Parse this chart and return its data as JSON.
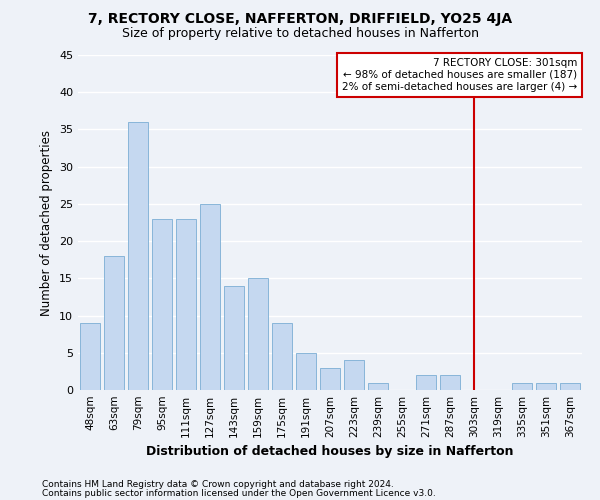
{
  "title": "7, RECTORY CLOSE, NAFFERTON, DRIFFIELD, YO25 4JA",
  "subtitle": "Size of property relative to detached houses in Nafferton",
  "xlabel": "Distribution of detached houses by size in Nafferton",
  "ylabel": "Number of detached properties",
  "bar_color": "#c5d8f0",
  "bar_edge_color": "#7baed4",
  "categories": [
    "48sqm",
    "63sqm",
    "79sqm",
    "95sqm",
    "111sqm",
    "127sqm",
    "143sqm",
    "159sqm",
    "175sqm",
    "191sqm",
    "207sqm",
    "223sqm",
    "239sqm",
    "255sqm",
    "271sqm",
    "287sqm",
    "303sqm",
    "319sqm",
    "335sqm",
    "351sqm",
    "367sqm"
  ],
  "values": [
    9,
    18,
    36,
    23,
    23,
    25,
    14,
    15,
    9,
    5,
    3,
    4,
    1,
    0,
    2,
    2,
    0,
    0,
    1,
    1,
    1
  ],
  "ylim": [
    0,
    45
  ],
  "yticks": [
    0,
    5,
    10,
    15,
    20,
    25,
    30,
    35,
    40,
    45
  ],
  "property_line_x": 16.0,
  "annotation_title": "7 RECTORY CLOSE: 301sqm",
  "annotation_line1": "← 98% of detached houses are smaller (187)",
  "annotation_line2": "2% of semi-detached houses are larger (4) →",
  "footer_line1": "Contains HM Land Registry data © Crown copyright and database right 2024.",
  "footer_line2": "Contains public sector information licensed under the Open Government Licence v3.0.",
  "bg_color": "#eef2f8",
  "plot_bg_color": "#eef2f8",
  "grid_color": "#ffffff",
  "annotation_box_color": "#cc0000",
  "property_line_color": "#cc0000"
}
